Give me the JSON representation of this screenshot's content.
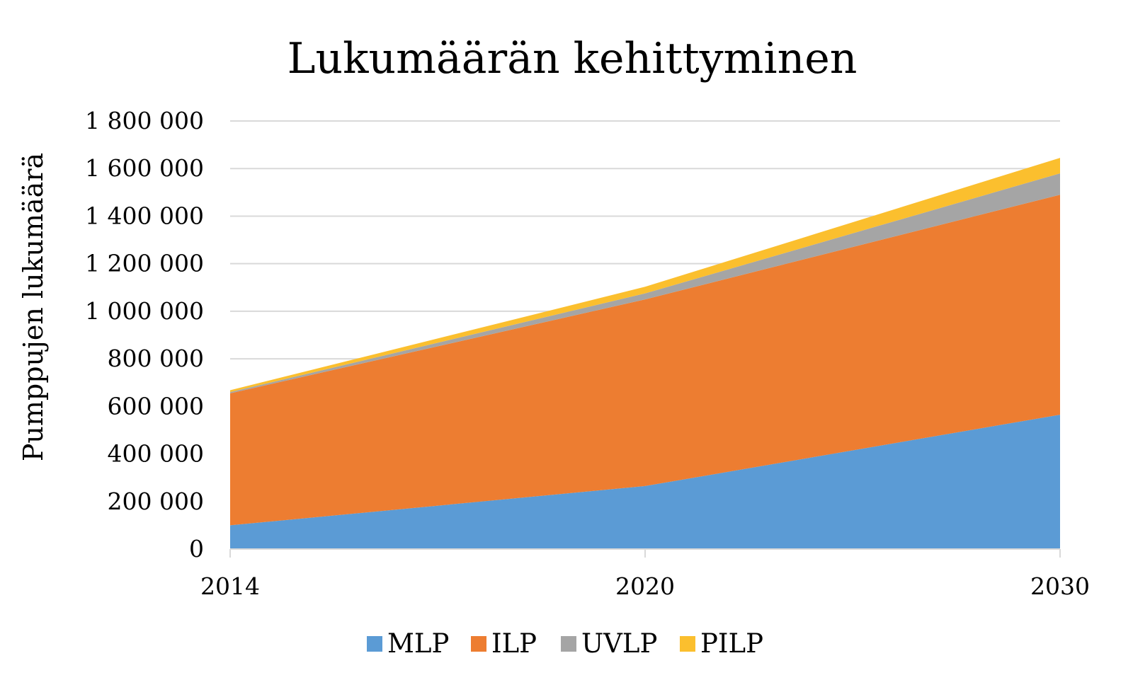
{
  "chart_data": {
    "type": "area",
    "stacked": true,
    "title": "Lukumäärän kehittyminen",
    "xlabel": "",
    "ylabel": "Pumppujen lukumäärä",
    "x": [
      "2014",
      "2020",
      "2030"
    ],
    "ylim": [
      0,
      1800000
    ],
    "yticks": [
      0,
      200000,
      400000,
      600000,
      800000,
      1000000,
      1200000,
      1400000,
      1600000,
      1800000
    ],
    "ytick_labels": [
      "0",
      "200 000",
      "400 000",
      "600 000",
      "800 000",
      "1 000 000",
      "1 200 000",
      "1 400 000",
      "1 600 000",
      "1 800 000"
    ],
    "grid": true,
    "legend_position": "bottom",
    "series": [
      {
        "name": "MLP",
        "color": "#5b9bd5",
        "values": [
          100000,
          265000,
          565000
        ]
      },
      {
        "name": "ILP",
        "color": "#ed7d31",
        "values": [
          555000,
          785000,
          925000
        ]
      },
      {
        "name": "UVLP",
        "color": "#a5a5a5",
        "values": [
          5000,
          25000,
          90000
        ]
      },
      {
        "name": "PILP",
        "color": "#fbbf2e",
        "values": [
          8000,
          28000,
          65000
        ]
      }
    ]
  }
}
